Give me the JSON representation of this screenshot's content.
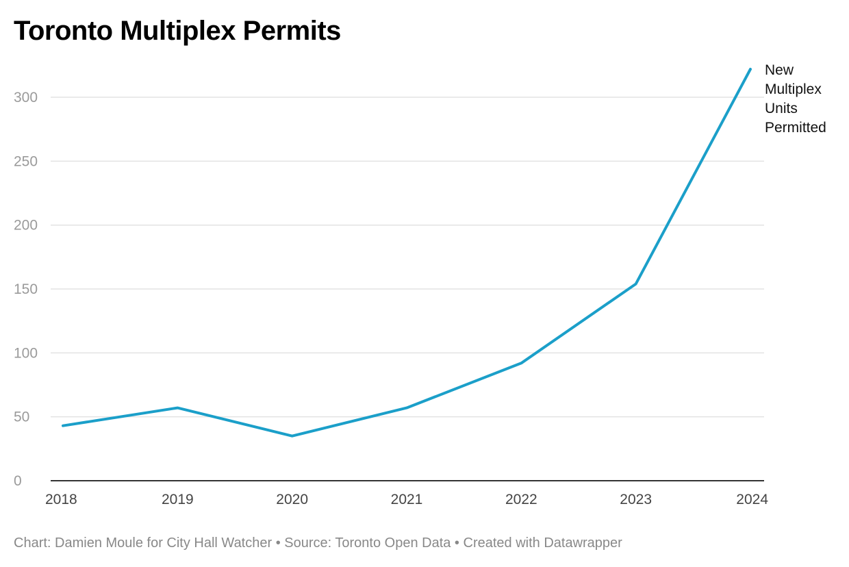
{
  "title": "Toronto Multiplex Permits",
  "footer": "Chart: Damien Moule for City Hall Watcher • Source: Toronto Open Data • Created with Datawrapper",
  "colors": {
    "line": "#1b9fc9",
    "grid": "#e3e3e3",
    "baseline": "#333333",
    "y_ticks": "#9a9a9a",
    "x_ticks": "#444444",
    "footer": "#888888"
  },
  "chart_data": {
    "type": "line",
    "title": "Toronto Multiplex Permits",
    "xlabel": "",
    "ylabel": "",
    "x": [
      "2018",
      "2019",
      "2020",
      "2021",
      "2022",
      "2023",
      "2024"
    ],
    "series": [
      {
        "name": "New Multiplex Units Permitted",
        "label_lines": [
          "New",
          "Multiplex",
          "Units",
          "Permitted"
        ],
        "values": [
          43,
          57,
          35,
          57,
          92,
          154,
          322
        ]
      }
    ],
    "yticks": [
      0,
      50,
      100,
      150,
      200,
      250,
      300
    ],
    "ylim": [
      0,
      322
    ],
    "grid": true,
    "legend": "direct label at line end"
  }
}
